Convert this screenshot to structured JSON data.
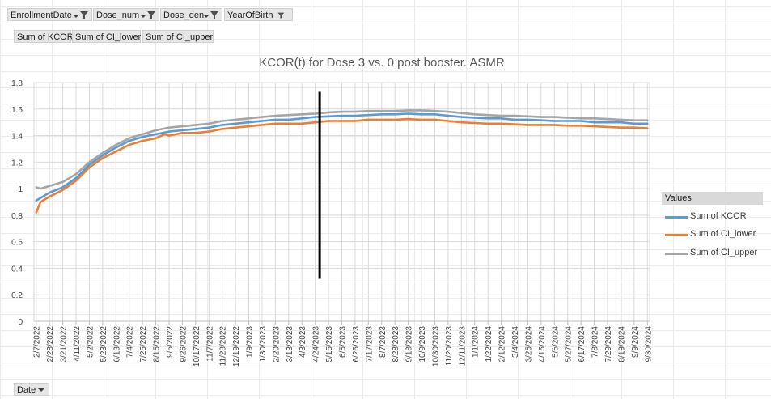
{
  "filters": [
    {
      "label": "EnrollmentDate",
      "icon": "filter-dropdown-icon"
    },
    {
      "label": "Dose_num",
      "icon": "filter-dropdown-icon"
    },
    {
      "label": "Dose_den",
      "icon": "filter-dropdown-icon"
    },
    {
      "label": "YearOfBirth",
      "icon": "filter-icon"
    }
  ],
  "value_fields": [
    "Sum of KCOR",
    "Sum of CI_lower",
    "Sum of CI_upper"
  ],
  "axis_field": {
    "label": "Date",
    "icon": "dropdown-arrow-icon"
  },
  "legend": {
    "header": "Values"
  },
  "colors": {
    "kcor": "#5b9bd5",
    "ci_lower": "#ed7d31",
    "ci_upper": "#a5a5a5",
    "marker": "#000000"
  },
  "chart_data": {
    "type": "line",
    "title": "KCOR(t) for Dose 3 vs. 0 post booster. ASMR",
    "xlabel": "",
    "ylabel": "",
    "ylim": [
      0,
      1.8
    ],
    "yticks": [
      "0",
      "0.2",
      "0.4",
      "0.6",
      "0.8",
      "1",
      "1.2",
      "1.4",
      "1.6",
      "1.8"
    ],
    "grid": true,
    "legend_position": "right",
    "x_start": "2/7/2022",
    "x_step_days": 7,
    "x_count": 139,
    "categories": [
      "2/7/2022",
      "2/28/2022",
      "3/21/2022",
      "4/11/2022",
      "5/2/2022",
      "5/23/2022",
      "6/13/2022",
      "7/4/2022",
      "7/25/2022",
      "8/15/2022",
      "9/5/2022",
      "9/26/2022",
      "10/17/2022",
      "11/7/2022",
      "11/28/2022",
      "12/19/2022",
      "1/9/2023",
      "1/30/2023",
      "2/20/2023",
      "3/13/2023",
      "4/3/2023",
      "4/24/2023",
      "5/15/2023",
      "6/5/2023",
      "6/26/2023",
      "7/17/2023",
      "8/7/2023",
      "8/28/2023",
      "9/18/2023",
      "10/9/2023",
      "10/30/2023",
      "11/20/2023",
      "12/11/2023",
      "1/1/2024",
      "1/22/2024",
      "2/12/2024",
      "3/4/2024",
      "3/25/2024",
      "4/15/2024",
      "5/6/2024",
      "5/27/2024",
      "6/17/2024",
      "7/8/2024",
      "7/29/2024",
      "8/19/2024",
      "9/9/2024",
      "9/30/2024"
    ],
    "vertical_marker": {
      "date": "5/1/2023",
      "y_from": 0.32,
      "y_to": 1.73
    },
    "series": [
      {
        "name": "Sum of KCOR",
        "key": "kcor",
        "x": [
          "2/7/2022",
          "2/28/2022",
          "3/21/2022",
          "4/11/2022",
          "5/2/2022",
          "5/23/2022",
          "6/13/2022",
          "7/4/2022",
          "7/25/2022",
          "8/15/2022",
          "9/5/2022",
          "9/26/2022",
          "10/17/2022",
          "11/7/2022",
          "11/28/2022",
          "12/19/2022",
          "1/9/2023",
          "1/30/2023",
          "2/20/2023",
          "3/13/2023",
          "4/3/2023",
          "4/24/2023",
          "5/15/2023",
          "6/5/2023",
          "6/26/2023",
          "7/17/2023",
          "8/7/2023",
          "8/28/2023",
          "9/18/2023",
          "10/9/2023",
          "10/30/2023",
          "11/20/2023",
          "12/11/2023",
          "1/1/2024",
          "1/22/2024",
          "2/12/2024",
          "3/4/2024",
          "3/25/2024",
          "4/15/2024",
          "5/6/2024",
          "5/27/2024",
          "6/17/2024",
          "7/8/2024",
          "7/29/2024",
          "8/19/2024",
          "9/9/2024",
          "9/30/2024"
        ],
        "values": [
          0.91,
          0.97,
          1.01,
          1.08,
          1.18,
          1.25,
          1.31,
          1.36,
          1.39,
          1.41,
          1.43,
          1.44,
          1.45,
          1.46,
          1.48,
          1.49,
          1.5,
          1.51,
          1.52,
          1.52,
          1.53,
          1.54,
          1.545,
          1.55,
          1.55,
          1.555,
          1.56,
          1.56,
          1.565,
          1.56,
          1.56,
          1.55,
          1.54,
          1.535,
          1.53,
          1.53,
          1.52,
          1.52,
          1.515,
          1.51,
          1.51,
          1.51,
          1.5,
          1.5,
          1.5,
          1.49,
          1.49
        ]
      },
      {
        "name": "Sum of CI_lower",
        "key": "ci_lower",
        "x": [
          "2/7/2022",
          "2/14/2022",
          "2/28/2022",
          "3/21/2022",
          "4/11/2022",
          "5/2/2022",
          "5/23/2022",
          "6/13/2022",
          "7/4/2022",
          "7/25/2022",
          "8/15/2022",
          "8/29/2022",
          "9/5/2022",
          "9/26/2022",
          "10/17/2022",
          "11/7/2022",
          "11/28/2022",
          "12/19/2022",
          "1/9/2023",
          "1/30/2023",
          "2/20/2023",
          "3/13/2023",
          "4/3/2023",
          "4/24/2023",
          "5/15/2023",
          "6/5/2023",
          "6/26/2023",
          "7/17/2023",
          "8/7/2023",
          "8/28/2023",
          "9/18/2023",
          "10/9/2023",
          "10/30/2023",
          "11/20/2023",
          "12/11/2023",
          "1/1/2024",
          "1/22/2024",
          "2/12/2024",
          "3/4/2024",
          "3/25/2024",
          "4/15/2024",
          "5/6/2024",
          "5/27/2024",
          "6/17/2024",
          "7/8/2024",
          "7/29/2024",
          "8/19/2024",
          "9/9/2024",
          "9/30/2024"
        ],
        "values": [
          0.82,
          0.9,
          0.94,
          0.99,
          1.06,
          1.16,
          1.23,
          1.28,
          1.33,
          1.36,
          1.38,
          1.41,
          1.4,
          1.42,
          1.42,
          1.43,
          1.45,
          1.46,
          1.47,
          1.48,
          1.49,
          1.49,
          1.49,
          1.5,
          1.51,
          1.51,
          1.51,
          1.52,
          1.52,
          1.52,
          1.525,
          1.52,
          1.52,
          1.51,
          1.5,
          1.495,
          1.49,
          1.49,
          1.485,
          1.48,
          1.48,
          1.48,
          1.475,
          1.475,
          1.47,
          1.465,
          1.46,
          1.46,
          1.455
        ]
      },
      {
        "name": "Sum of CI_upper",
        "key": "ci_upper",
        "x": [
          "2/7/2022",
          "2/14/2022",
          "2/28/2022",
          "3/21/2022",
          "4/11/2022",
          "5/2/2022",
          "5/23/2022",
          "6/13/2022",
          "7/4/2022",
          "7/25/2022",
          "8/15/2022",
          "9/5/2022",
          "9/26/2022",
          "10/17/2022",
          "11/7/2022",
          "11/28/2022",
          "12/19/2022",
          "1/9/2023",
          "1/30/2023",
          "2/20/2023",
          "3/13/2023",
          "4/3/2023",
          "4/24/2023",
          "5/15/2023",
          "6/5/2023",
          "6/26/2023",
          "7/17/2023",
          "8/7/2023",
          "8/28/2023",
          "9/18/2023",
          "10/9/2023",
          "10/30/2023",
          "11/20/2023",
          "12/11/2023",
          "1/1/2024",
          "1/22/2024",
          "2/12/2024",
          "3/4/2024",
          "3/25/2024",
          "4/15/2024",
          "5/6/2024",
          "5/27/2024",
          "6/17/2024",
          "7/8/2024",
          "7/29/2024",
          "8/19/2024",
          "9/9/2024",
          "9/30/2024"
        ],
        "values": [
          1.01,
          1.0,
          1.02,
          1.05,
          1.11,
          1.2,
          1.27,
          1.33,
          1.38,
          1.41,
          1.44,
          1.46,
          1.47,
          1.48,
          1.49,
          1.51,
          1.52,
          1.53,
          1.54,
          1.55,
          1.555,
          1.56,
          1.565,
          1.575,
          1.58,
          1.58,
          1.585,
          1.585,
          1.585,
          1.59,
          1.59,
          1.585,
          1.58,
          1.57,
          1.56,
          1.555,
          1.55,
          1.55,
          1.545,
          1.54,
          1.54,
          1.535,
          1.53,
          1.53,
          1.525,
          1.52,
          1.515,
          1.515
        ]
      }
    ]
  }
}
